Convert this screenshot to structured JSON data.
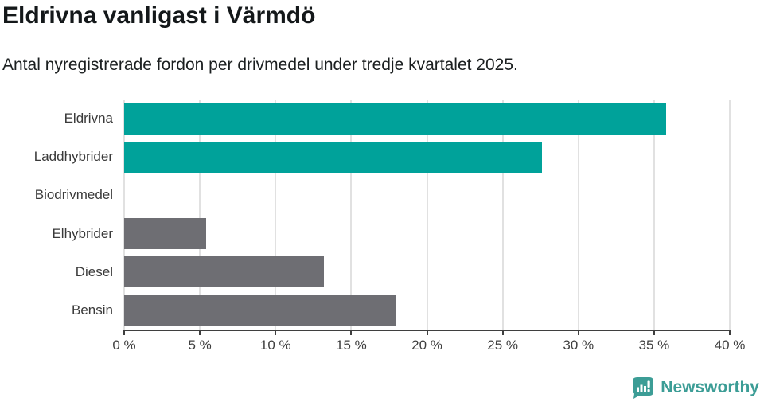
{
  "header": {
    "title": "Eldrivna vanligast i Värmdö",
    "subtitle": "Antal nyregistrerade fordon per drivmedel under tredje kvartalet 2025."
  },
  "chart_data": {
    "type": "bar",
    "orientation": "horizontal",
    "title": "Eldrivna vanligast i Värmdö",
    "subtitle": "Antal nyregistrerade fordon per drivmedel under tredje kvartalet 2025.",
    "categories": [
      "Eldrivna",
      "Laddhybrider",
      "Biodrivmedel",
      "Elhybrider",
      "Diesel",
      "Bensin"
    ],
    "values": [
      35.8,
      27.6,
      0,
      5.4,
      13.2,
      17.9
    ],
    "unit": "%",
    "xlabel": "",
    "ylabel": "",
    "xlim": [
      0,
      40
    ],
    "xticks": [
      0,
      5,
      10,
      15,
      20,
      25,
      30,
      35,
      40
    ],
    "xtick_labels": [
      "0 %",
      "5 %",
      "10 %",
      "15 %",
      "20 %",
      "25 %",
      "30 %",
      "35 %",
      "40 %"
    ],
    "bar_colors": [
      "#00a29a",
      "#00a29a",
      "#6e6e73",
      "#6e6e73",
      "#6e6e73",
      "#6e6e73"
    ],
    "grid": "vertical-only",
    "legend": "none"
  },
  "colors": {
    "highlight": "#00a29a",
    "muted": "#6e6e73",
    "gridline": "#e1e1e1",
    "axis": "#3f3f3f",
    "brand_teal": "#3c9d96"
  },
  "branding": {
    "logo_text": "Newsworthy"
  }
}
